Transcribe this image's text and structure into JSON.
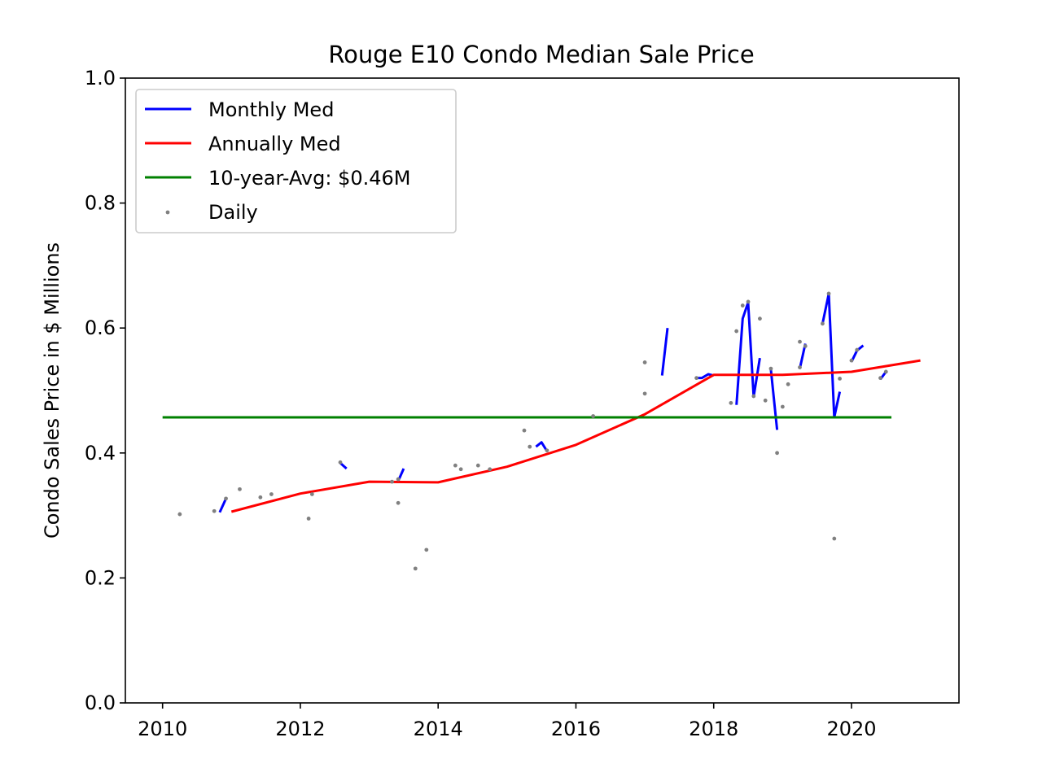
{
  "chart_data": {
    "type": "line",
    "title": "Rouge E10 Condo Median Sale Price",
    "xlabel": "",
    "ylabel": "Condo Sales Price in $ Millions",
    "xlim": [
      2009.46,
      2021.56
    ],
    "ylim": [
      0.0,
      1.0
    ],
    "x_ticks": [
      "2010",
      "2012",
      "2014",
      "2016",
      "2018",
      "2020"
    ],
    "y_ticks": [
      "0.0",
      "0.2",
      "0.4",
      "0.6",
      "0.8",
      "1.0"
    ],
    "legend_position": "top-left",
    "grid": false,
    "series": [
      {
        "name": "Monthly Med",
        "kind": "line",
        "color": "#0000ff",
        "segments": [
          [
            [
              2010.83,
              0.305
            ],
            [
              2010.92,
              0.327
            ]
          ],
          [
            [
              2012.58,
              0.384
            ],
            [
              2012.67,
              0.375
            ]
          ],
          [
            [
              2013.42,
              0.355
            ],
            [
              2013.5,
              0.375
            ]
          ],
          [
            [
              2015.42,
              0.41
            ],
            [
              2015.5,
              0.417
            ],
            [
              2015.58,
              0.403
            ]
          ],
          [
            [
              2017.25,
              0.524
            ],
            [
              2017.33,
              0.6
            ]
          ],
          [
            [
              2017.75,
              0.52
            ],
            [
              2017.83,
              0.52
            ],
            [
              2017.92,
              0.526
            ],
            [
              2018.0,
              0.524
            ]
          ],
          [
            [
              2018.33,
              0.477
            ],
            [
              2018.42,
              0.615
            ],
            [
              2018.5,
              0.641
            ],
            [
              2018.58,
              0.49
            ],
            [
              2018.67,
              0.552
            ]
          ],
          [
            [
              2018.83,
              0.533
            ],
            [
              2018.92,
              0.437
            ]
          ],
          [
            [
              2019.25,
              0.535
            ],
            [
              2019.33,
              0.575
            ]
          ],
          [
            [
              2019.58,
              0.607
            ],
            [
              2019.67,
              0.655
            ],
            [
              2019.75,
              0.457
            ],
            [
              2019.83,
              0.498
            ]
          ],
          [
            [
              2020.0,
              0.546
            ],
            [
              2020.08,
              0.564
            ],
            [
              2020.17,
              0.572
            ]
          ],
          [
            [
              2020.42,
              0.518
            ],
            [
              2020.5,
              0.53
            ]
          ]
        ]
      },
      {
        "name": "Annually Med",
        "kind": "line",
        "color": "#ff0000",
        "x": [
          2011,
          2012,
          2013,
          2014,
          2015,
          2016,
          2017,
          2018,
          2019,
          2020,
          2021
        ],
        "y": [
          0.306,
          0.335,
          0.354,
          0.353,
          0.378,
          0.413,
          0.462,
          0.525,
          0.525,
          0.53,
          0.548
        ]
      },
      {
        "name": "10-year-Avg: $0.46M",
        "kind": "hline",
        "color": "#008000",
        "x": [
          2010.0,
          2020.58
        ],
        "y": [
          0.457,
          0.457
        ]
      },
      {
        "name": "Daily",
        "kind": "scatter",
        "color": "#808080",
        "x": [
          2010.25,
          2010.75,
          2010.92,
          2011.12,
          2011.42,
          2011.58,
          2012.12,
          2012.17,
          2012.58,
          2013.33,
          2013.42,
          2013.42,
          2013.67,
          2013.83,
          2014.25,
          2014.33,
          2014.58,
          2014.75,
          2015.25,
          2015.33,
          2015.58,
          2016.25,
          2017.0,
          2017.0,
          2017.75,
          2018.25,
          2018.33,
          2018.42,
          2018.5,
          2018.58,
          2018.67,
          2018.75,
          2018.83,
          2018.92,
          2019.0,
          2019.08,
          2019.25,
          2019.25,
          2019.33,
          2019.58,
          2019.67,
          2019.75,
          2019.83,
          2020.0,
          2020.08,
          2020.42,
          2020.5
        ],
        "y": [
          0.302,
          0.307,
          0.327,
          0.342,
          0.329,
          0.334,
          0.295,
          0.334,
          0.385,
          0.354,
          0.32,
          0.358,
          0.215,
          0.245,
          0.38,
          0.374,
          0.38,
          0.374,
          0.436,
          0.41,
          0.404,
          0.459,
          0.545,
          0.495,
          0.52,
          0.48,
          0.595,
          0.636,
          0.642,
          0.491,
          0.615,
          0.484,
          0.535,
          0.4,
          0.474,
          0.51,
          0.578,
          0.537,
          0.571,
          0.607,
          0.655,
          0.263,
          0.519,
          0.548,
          0.565,
          0.52,
          0.53
        ]
      }
    ]
  }
}
